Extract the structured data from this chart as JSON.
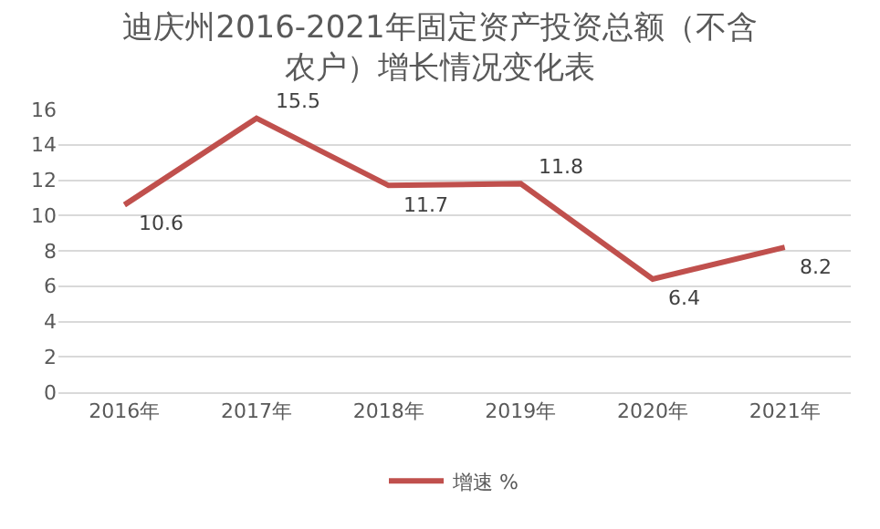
{
  "chart_data": {
    "type": "line",
    "title": "迪庆州2016-2021年固定资产投资总额（不含农户）增长情况变化表",
    "categories": [
      "2016年",
      "2017年",
      "2018年",
      "2019年",
      "2020年",
      "2021年"
    ],
    "series": [
      {
        "name": "增速 %",
        "color": "#c0504d",
        "values": [
          10.6,
          15.5,
          11.7,
          11.8,
          6.4,
          8.2
        ]
      }
    ],
    "ylim": [
      0,
      16
    ],
    "yticks": [
      0,
      2,
      4,
      6,
      8,
      10,
      12,
      14,
      16
    ],
    "grid": "y",
    "legend": "bottom",
    "data_labels": true,
    "marker": "none",
    "line_style": "solid"
  }
}
